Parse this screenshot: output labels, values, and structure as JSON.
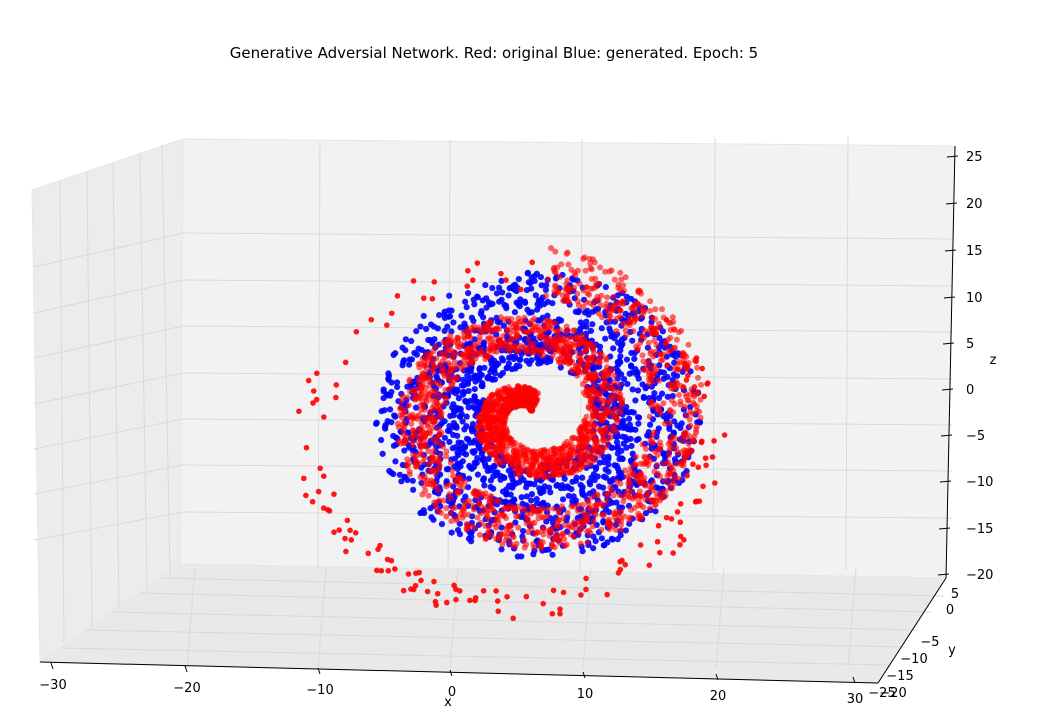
{
  "chart_data": {
    "type": "scatter",
    "projection": "3d",
    "title": "Generative Adversial Network. Red: original Blue: generated. Epoch: 5",
    "xlabel": "x",
    "ylabel": "y",
    "zlabel": "z",
    "xlim": [
      -32,
      32
    ],
    "ylim": [
      -25,
      8
    ],
    "zlim": [
      -20,
      26
    ],
    "xticks": [
      "−30",
      "−20",
      "−10",
      "0",
      "10",
      "20",
      "30"
    ],
    "yticks": [
      "5",
      "0",
      "−5",
      "−10",
      "−15",
      "−20",
      "−25"
    ],
    "zticks": [
      "25",
      "20",
      "15",
      "10",
      "5",
      "0",
      "−5",
      "−10",
      "−15",
      "−20"
    ],
    "grid": true,
    "series": [
      {
        "color": "#ff0000",
        "shape": "spiral-arm",
        "x": [
          -19,
          -17,
          -14,
          -11,
          -8,
          -5,
          -2,
          1,
          4,
          7,
          10,
          13,
          15,
          17,
          19,
          20,
          21,
          21,
          20,
          19,
          17,
          14,
          11,
          8,
          5,
          2,
          -1,
          -4,
          -7,
          -10,
          -13,
          -15,
          -17,
          -18,
          -19,
          -19,
          -18,
          -17,
          -15,
          -13,
          -11,
          -9,
          -7,
          -5,
          -3,
          -1,
          1,
          3,
          5,
          7,
          9,
          11,
          12,
          13,
          14,
          14,
          13,
          12,
          10,
          8,
          6,
          4,
          2,
          0,
          -2,
          -4,
          -6,
          -8,
          -9,
          -10,
          -10,
          -9,
          -8,
          -6,
          -4,
          -2,
          0,
          2,
          4,
          5,
          6,
          6,
          5,
          3,
          1
        ],
        "z": [
          -6,
          -9,
          -12,
          -15,
          -17,
          -18,
          -19,
          -19,
          -18,
          -17,
          -16,
          -14,
          -12,
          -9,
          -6,
          -3,
          0,
          3,
          6,
          9,
          11,
          13,
          14,
          15,
          15,
          15,
          14,
          13,
          12,
          10,
          8,
          6,
          3,
          0,
          -3,
          -6,
          -9,
          -11,
          -13,
          -14,
          -15,
          -15,
          -15,
          -14,
          -13,
          -12,
          -11,
          -9,
          -7,
          -5,
          -3,
          0,
          2,
          5,
          7,
          9,
          10,
          11,
          11,
          11,
          10,
          9,
          7,
          5,
          3,
          1,
          -1,
          -3,
          -5,
          -6,
          -7,
          -8,
          -8,
          -7,
          -6,
          -4,
          -2,
          0,
          2,
          3,
          3,
          2,
          1,
          0,
          -1
        ]
      },
      {
        "color": "#0000ff",
        "shape": "annulus",
        "x": [
          -12,
          -10,
          -7,
          -4,
          -1,
          2,
          5,
          8,
          11,
          13,
          15,
          16,
          17,
          16,
          15,
          13,
          10,
          7,
          4,
          1,
          -2,
          -5,
          -8,
          -10,
          -12,
          -13,
          -13,
          -11,
          -9,
          -6,
          -3,
          0,
          3,
          6,
          9,
          11,
          12,
          12,
          10,
          8,
          5,
          2,
          -1,
          -4,
          -7
        ],
        "z": [
          -3,
          -7,
          -10,
          -12,
          -13,
          -14,
          -13,
          -12,
          -10,
          -7,
          -4,
          -1,
          2,
          5,
          8,
          10,
          12,
          13,
          13,
          13,
          12,
          11,
          9,
          6,
          3,
          0,
          -2,
          -5,
          -9,
          -11,
          -12,
          -11,
          -9,
          -6,
          -3,
          0,
          3,
          6,
          8,
          10,
          10,
          9,
          7,
          4,
          1
        ]
      }
    ]
  }
}
